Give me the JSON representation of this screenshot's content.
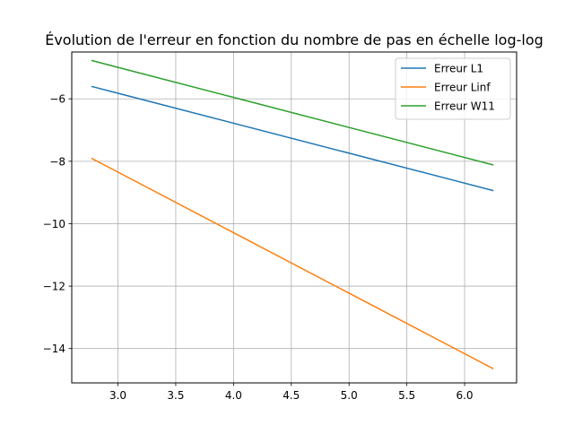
{
  "chart_data": {
    "type": "line",
    "title": "Évolution de l'erreur en fonction du nombre de pas en échelle log-log",
    "xlabel": "",
    "ylabel": "",
    "xlim": [
      2.6,
      6.45
    ],
    "ylim": [
      -15.1,
      -4.5
    ],
    "xticks": [
      3.0,
      3.5,
      4.0,
      4.5,
      5.0,
      5.5,
      6.0
    ],
    "xtick_labels": [
      "3.0",
      "3.5",
      "4.0",
      "4.5",
      "5.0",
      "5.5",
      "6.0"
    ],
    "yticks": [
      -14,
      -12,
      -10,
      -8,
      -6
    ],
    "ytick_labels": [
      "−14",
      "−12",
      "−10",
      "−8",
      "−6"
    ],
    "grid": true,
    "legend_position": "top-right",
    "series": [
      {
        "name": "Erreur L1",
        "color": "#1f77b4",
        "x": [
          2.77,
          6.25
        ],
        "y": [
          -5.6,
          -8.94
        ]
      },
      {
        "name": "Erreur Linf",
        "color": "#ff7f0e",
        "x": [
          2.77,
          6.25
        ],
        "y": [
          -7.9,
          -14.65
        ]
      },
      {
        "name": "Erreur W11",
        "color": "#2ca02c",
        "x": [
          2.77,
          6.25
        ],
        "y": [
          -4.77,
          -8.12
        ]
      }
    ]
  }
}
